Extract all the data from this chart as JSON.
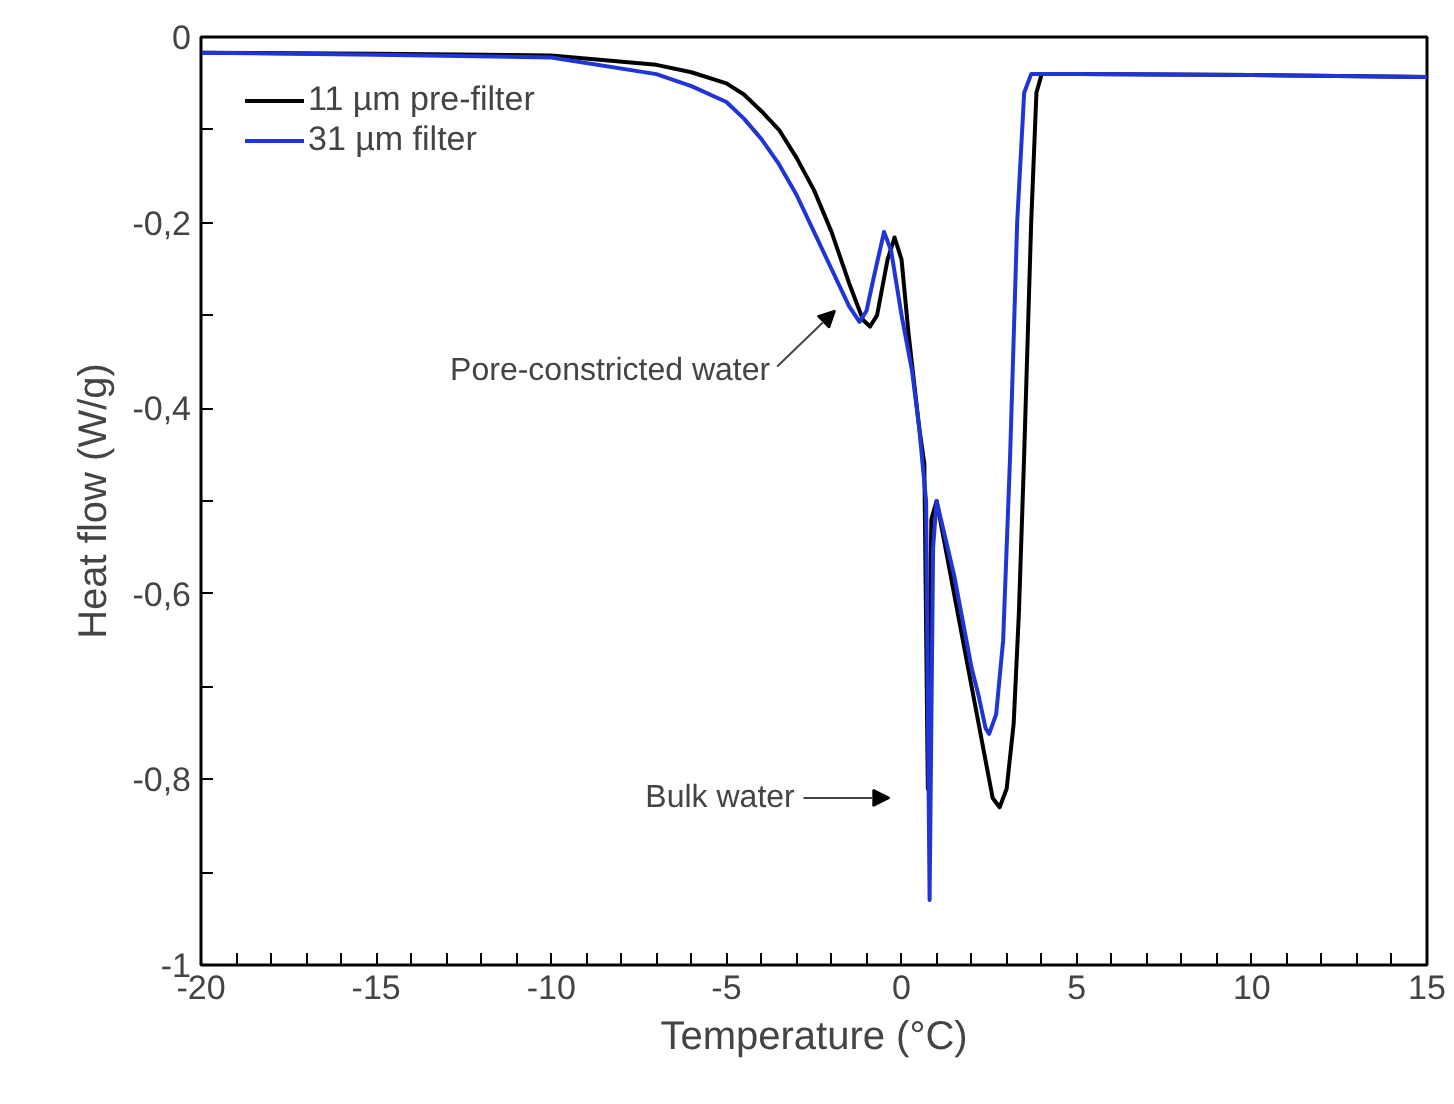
{
  "chart_data": {
    "type": "line",
    "xlabel": "Temperature (°C)",
    "ylabel": "Heat flow (W/g)",
    "xlim": [
      -20,
      15
    ],
    "ylim": [
      -1,
      0
    ],
    "xticks": [
      -20,
      {
        "value": -19,
        "label": null
      },
      {
        "value": -18,
        "label": null
      },
      {
        "value": -17,
        "label": null
      },
      {
        "value": -16,
        "label": null
      },
      -15,
      {
        "value": -14,
        "label": null
      },
      {
        "value": -13,
        "label": null
      },
      {
        "value": -12,
        "label": null
      },
      {
        "value": -11,
        "label": null
      },
      -10,
      {
        "value": -9,
        "label": null
      },
      {
        "value": -8,
        "label": null
      },
      {
        "value": -7,
        "label": null
      },
      {
        "value": -6,
        "label": null
      },
      -5,
      {
        "value": -4,
        "label": null
      },
      {
        "value": -3,
        "label": null
      },
      {
        "value": -2,
        "label": null
      },
      {
        "value": -1,
        "label": null
      },
      0,
      {
        "value": 1,
        "label": null
      },
      {
        "value": 2,
        "label": null
      },
      {
        "value": 3,
        "label": null
      },
      {
        "value": 4,
        "label": null
      },
      5,
      {
        "value": 6,
        "label": null
      },
      {
        "value": 7,
        "label": null
      },
      {
        "value": 8,
        "label": null
      },
      {
        "value": 9,
        "label": null
      },
      10,
      {
        "value": 11,
        "label": null
      },
      {
        "value": 12,
        "label": null
      },
      {
        "value": 13,
        "label": null
      },
      {
        "value": 14,
        "label": null
      },
      15
    ],
    "yticks": [
      {
        "value": -1,
        "label": "-1"
      },
      {
        "value": -0.9,
        "label": null
      },
      {
        "value": -0.8,
        "label": "-0,8"
      },
      {
        "value": -0.7,
        "label": null
      },
      {
        "value": -0.6,
        "label": "-0,6"
      },
      {
        "value": -0.5,
        "label": null
      },
      {
        "value": -0.4,
        "label": "-0,4"
      },
      {
        "value": -0.3,
        "label": null
      },
      {
        "value": -0.2,
        "label": "-0,2"
      },
      {
        "value": -0.1,
        "label": null
      },
      {
        "value": 0,
        "label": "0"
      }
    ],
    "grid": false,
    "legend": "top left",
    "marker": "none",
    "line_style": "solid",
    "series": [
      {
        "name": "11 µm pre-filter",
        "color": "#000000",
        "x": [
          -20,
          -15,
          -10,
          -7,
          -6,
          -5,
          -4.5,
          -4,
          -3.5,
          -3,
          -2.5,
          -2,
          -1.5,
          -1.1,
          -0.9,
          -0.7,
          -0.4,
          -0.2,
          0,
          0.2,
          0.5,
          0.65,
          0.75,
          0.85,
          1.0,
          1.5,
          2.0,
          2.4,
          2.6,
          2.8,
          3.0,
          3.2,
          3.35,
          3.5,
          3.7,
          3.85,
          4.0,
          5,
          10,
          15
        ],
        "values": [
          -0.017,
          -0.018,
          -0.02,
          -0.03,
          -0.038,
          -0.05,
          -0.062,
          -0.08,
          -0.1,
          -0.13,
          -0.165,
          -0.21,
          -0.265,
          -0.305,
          -0.312,
          -0.3,
          -0.24,
          -0.216,
          -0.24,
          -0.32,
          -0.42,
          -0.46,
          -0.81,
          -0.52,
          -0.5,
          -0.6,
          -0.7,
          -0.78,
          -0.82,
          -0.83,
          -0.81,
          -0.74,
          -0.62,
          -0.45,
          -0.2,
          -0.06,
          -0.04,
          -0.04,
          -0.041,
          -0.043
        ]
      },
      {
        "name": "31 µm filter",
        "color": "#1f35d6",
        "x": [
          -20,
          -15,
          -10,
          -7,
          -6,
          -5,
          -4.5,
          -4,
          -3.5,
          -3,
          -2.5,
          -2,
          -1.5,
          -1.2,
          -1.0,
          -0.8,
          -0.5,
          -0.3,
          0,
          0.3,
          0.5,
          0.7,
          0.8,
          0.9,
          1.0,
          1.5,
          2.0,
          2.2,
          2.4,
          2.5,
          2.7,
          2.9,
          3.1,
          3.3,
          3.5,
          3.7,
          5,
          10,
          15
        ],
        "values": [
          -0.017,
          -0.019,
          -0.022,
          -0.04,
          -0.053,
          -0.07,
          -0.088,
          -0.11,
          -0.137,
          -0.17,
          -0.21,
          -0.25,
          -0.29,
          -0.307,
          -0.295,
          -0.26,
          -0.21,
          -0.23,
          -0.3,
          -0.36,
          -0.42,
          -0.5,
          -0.93,
          -0.55,
          -0.5,
          -0.58,
          -0.68,
          -0.71,
          -0.745,
          -0.751,
          -0.73,
          -0.65,
          -0.45,
          -0.2,
          -0.06,
          -0.04,
          -0.04,
          -0.041,
          -0.043
        ]
      }
    ],
    "annotations": [
      "Pore-constricted water",
      "Bulk water"
    ]
  }
}
